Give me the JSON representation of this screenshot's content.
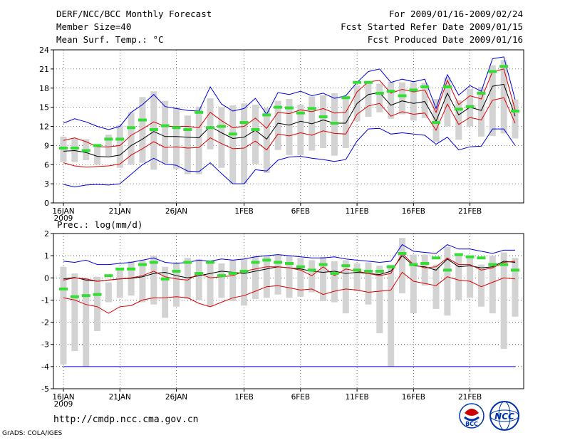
{
  "header": {
    "title": "DERF/NCC/BCC Monthly Forecast",
    "member_size": "Member Size=40",
    "variable": "Mean Surf. Temp.: °C",
    "period": "For 2009/01/16-2009/02/24",
    "fcst_started": "Fcst Started Refer Date 2009/01/15",
    "fcst_produced": "Fcst Produced Date 2009/01/16"
  },
  "footer": {
    "url": "http://cmdp.ncc.cma.gov.cn",
    "grads": "GrADS: COLA/IGES",
    "logo1_text": "BCC",
    "logo2_text": "NCC"
  },
  "colors": {
    "box": "#d3d3d3",
    "mean": "#000000",
    "inner": "#dd0000",
    "outer": "#0000dd",
    "obs": "#33dd33",
    "grid": "#000000"
  },
  "chart_data": [
    {
      "type": "line",
      "title": "Mean Surf. Temp.: °C",
      "days": 40,
      "ylim": [
        0,
        24
      ],
      "yticks": [
        "0",
        "3",
        "6",
        "9",
        "12",
        "15",
        "18",
        "21",
        "24"
      ],
      "xticks": [
        {
          "day": 0,
          "label": "16JAN",
          "sub": "2009"
        },
        {
          "day": 5,
          "label": "21JAN"
        },
        {
          "day": 10,
          "label": "26JAN"
        },
        {
          "day": 16,
          "label": "1FEB"
        },
        {
          "day": 21,
          "label": "6FEB"
        },
        {
          "day": 26,
          "label": "11FEB"
        },
        {
          "day": 31,
          "label": "16FEB"
        },
        {
          "day": 36,
          "label": "21FEB"
        }
      ],
      "series": [
        {
          "name": "ensemble-mean",
          "values": [
            8.1,
            8.2,
            7.9,
            7.3,
            7.2,
            7.5,
            9.0,
            10.0,
            11.2,
            10.4,
            10.4,
            10.3,
            10.2,
            12.0,
            11.0,
            10.1,
            10.3,
            11.4,
            10.0,
            12.5,
            12.2,
            12.8,
            12.4,
            13.0,
            12.5,
            12.5,
            15.6,
            17.0,
            17.3,
            15.3,
            16.0,
            15.6,
            15.9,
            12.8,
            17.2,
            13.8,
            15.0,
            14.5,
            18.3,
            18.6,
            13.6
          ]
        },
        {
          "name": "inner-upper",
          "values": [
            9.8,
            10.2,
            9.6,
            8.8,
            8.8,
            9.0,
            10.6,
            11.6,
            12.7,
            12.0,
            12.0,
            12.0,
            11.8,
            14.2,
            12.9,
            11.8,
            12.0,
            13.3,
            11.7,
            14.2,
            14.0,
            14.6,
            14.3,
            14.8,
            14.1,
            14.2,
            17.4,
            19.0,
            19.2,
            17.2,
            17.8,
            17.4,
            17.7,
            14.2,
            19.2,
            15.4,
            16.8,
            16.3,
            20.6,
            21.0,
            14.6
          ]
        },
        {
          "name": "inner-lower",
          "values": [
            6.3,
            5.8,
            5.6,
            5.7,
            5.8,
            6.1,
            7.5,
            8.5,
            9.6,
            8.7,
            8.8,
            8.6,
            8.7,
            10.2,
            9.3,
            8.5,
            8.6,
            9.7,
            8.3,
            10.8,
            10.5,
            11.0,
            10.6,
            11.3,
            10.9,
            10.8,
            13.9,
            15.2,
            15.6,
            13.6,
            14.3,
            13.9,
            14.1,
            11.4,
            15.5,
            12.3,
            13.4,
            13.0,
            16.1,
            16.5,
            12.5
          ]
        },
        {
          "name": "outer-upper",
          "values": [
            12.5,
            13.2,
            12.7,
            12.0,
            11.5,
            12.0,
            14.2,
            15.4,
            17.0,
            15.1,
            14.8,
            14.5,
            14.4,
            18.2,
            15.5,
            14.4,
            14.8,
            16.4,
            13.9,
            17.3,
            17.0,
            17.5,
            16.8,
            17.2,
            16.4,
            16.8,
            18.9,
            20.6,
            21.0,
            18.9,
            19.4,
            19.0,
            19.4,
            14.8,
            20.1,
            16.9,
            18.4,
            17.5,
            22.6,
            22.9,
            16.2
          ]
        },
        {
          "name": "outer-lower",
          "values": [
            2.9,
            2.5,
            2.8,
            2.9,
            2.8,
            3.0,
            4.5,
            6.0,
            7.0,
            6.1,
            5.9,
            5.0,
            4.9,
            6.3,
            4.6,
            3.0,
            3.0,
            5.2,
            5.0,
            6.7,
            7.2,
            7.3,
            7.0,
            6.8,
            6.5,
            6.8,
            9.7,
            11.6,
            11.7,
            10.8,
            11.0,
            10.8,
            10.6,
            9.2,
            10.3,
            8.3,
            8.8,
            8.9,
            11.6,
            11.6,
            9.0
          ]
        }
      ],
      "boxes": [
        [
          6.4,
          10.4
        ],
        [
          6.4,
          10.1
        ],
        [
          6.7,
          10.0
        ],
        [
          6.0,
          8.9
        ],
        [
          7.2,
          10.7
        ],
        [
          5.5,
          12.2
        ],
        [
          6.0,
          14.2
        ],
        [
          6.3,
          16.6
        ],
        [
          5.2,
          17.5
        ],
        [
          6.2,
          16.0
        ],
        [
          5.3,
          15.0
        ],
        [
          4.5,
          13.7
        ],
        [
          4.5,
          15.1
        ],
        [
          8.4,
          16.4
        ],
        [
          5.5,
          15.0
        ],
        [
          3.0,
          15.3
        ],
        [
          3.0,
          15.6
        ],
        [
          6.1,
          15.4
        ],
        [
          4.7,
          14.9
        ],
        [
          8.3,
          16.0
        ],
        [
          7.5,
          16.3
        ],
        [
          7.5,
          15.4
        ],
        [
          8.2,
          16.7
        ],
        [
          8.6,
          16.9
        ],
        [
          7.4,
          17.2
        ],
        [
          8.6,
          16.5
        ],
        [
          12.8,
          18.4
        ],
        [
          13.5,
          19.0
        ],
        [
          14.2,
          18.7
        ],
        [
          13.2,
          19.0
        ],
        [
          13.9,
          18.9
        ],
        [
          12.9,
          18.9
        ],
        [
          13.3,
          18.8
        ],
        [
          9.6,
          16.3
        ],
        [
          12.0,
          19.7
        ],
        [
          9.9,
          16.1
        ],
        [
          12.0,
          17.9
        ],
        [
          10.4,
          18.2
        ],
        [
          10.5,
          21.6
        ],
        [
          10.9,
          22.4
        ],
        [
          10.1,
          16.2
        ]
      ],
      "obs": [
        8.6,
        8.6,
        8.2,
        9.0,
        10.0,
        10.0,
        11.8,
        13.0,
        11.5,
        12.1,
        11.8,
        11.5,
        14.2,
        11.8,
        12.0,
        10.8,
        12.6,
        11.5,
        13.8,
        15.0,
        14.9,
        14.1,
        14.8,
        13.5,
        12.5,
        16.5,
        18.9,
        18.9,
        17.2,
        17.5,
        16.8,
        17.7,
        18.2,
        12.6,
        18.2,
        14.7,
        15.1,
        17.2,
        20.6,
        21.4,
        14.4
      ]
    },
    {
      "type": "line",
      "title": "Prec.: log(mm/d)",
      "days": 40,
      "ylim": [
        -5,
        2
      ],
      "yticks": [
        "-5",
        "-4",
        "-3",
        "-2",
        "-1",
        "0",
        "1",
        "2"
      ],
      "xticks": [
        {
          "day": 0,
          "label": "16JAN",
          "sub": "2009"
        },
        {
          "day": 5,
          "label": "21JAN"
        },
        {
          "day": 10,
          "label": "26JAN"
        },
        {
          "day": 16,
          "label": "1FEB"
        },
        {
          "day": 21,
          "label": "6FEB"
        },
        {
          "day": 26,
          "label": "11FEB"
        },
        {
          "day": 31,
          "label": "16FEB"
        },
        {
          "day": 36,
          "label": "21FEB"
        }
      ],
      "hline": -4,
      "series": [
        {
          "name": "ensemble-mean",
          "values": [
            -0.05,
            0.02,
            -0.1,
            -0.15,
            -0.1,
            -0.05,
            -0.02,
            0.05,
            0.2,
            0.25,
            0.1,
            0.0,
            0.1,
            0.2,
            0.3,
            0.25,
            0.2,
            0.3,
            0.4,
            0.5,
            0.45,
            0.4,
            0.3,
            0.25,
            0.3,
            0.2,
            0.25,
            0.2,
            0.15,
            0.3,
            1.0,
            0.55,
            0.5,
            0.35,
            0.85,
            0.5,
            0.55,
            0.45,
            0.5,
            0.75,
            0.7
          ]
        },
        {
          "name": "mean-b",
          "values": [
            -0.1,
            0.0,
            -0.05,
            -0.15,
            -0.1,
            -0.05,
            0.0,
            0.1,
            0.3,
            0.05,
            -0.05,
            -0.1,
            0.2,
            0.0,
            0.05,
            0.1,
            0.3,
            0.4,
            0.5,
            0.5,
            0.45,
            0.35,
            0.1,
            0.5,
            0.1,
            0.4,
            0.3,
            0.2,
            0.1,
            0.2,
            1.1,
            0.6,
            0.45,
            0.5,
            0.9,
            0.6,
            0.6,
            0.35,
            0.45,
            0.7,
            0.75
          ]
        },
        {
          "name": "inner-lower",
          "values": [
            -0.9,
            -1.0,
            -1.2,
            -1.3,
            -1.6,
            -1.3,
            -1.25,
            -1.0,
            -0.9,
            -0.9,
            -0.85,
            -0.9,
            -1.15,
            -1.3,
            -1.1,
            -0.9,
            -0.8,
            -0.6,
            -0.4,
            -0.35,
            -0.45,
            -0.55,
            -0.5,
            -0.75,
            -0.6,
            -0.5,
            -0.55,
            -0.65,
            -0.6,
            -0.55,
            0.25,
            -0.15,
            -0.25,
            -0.35,
            0.05,
            -0.1,
            -0.15,
            -0.4,
            -0.2,
            0.0,
            -0.05
          ]
        },
        {
          "name": "outer-upper",
          "values": [
            0.75,
            0.7,
            0.8,
            0.6,
            0.6,
            0.65,
            0.7,
            0.8,
            0.9,
            0.7,
            0.65,
            0.7,
            0.8,
            0.75,
            0.85,
            0.8,
            0.85,
            0.95,
            1.0,
            1.05,
            1.0,
            0.95,
            0.9,
            0.9,
            0.95,
            0.85,
            0.8,
            0.75,
            0.7,
            0.75,
            1.5,
            1.2,
            1.15,
            1.1,
            1.5,
            1.3,
            1.3,
            1.2,
            1.1,
            1.25,
            1.25
          ]
        }
      ],
      "boxes": [
        [
          -3.9,
          0.5
        ],
        [
          -3.3,
          0.2
        ],
        [
          -4.0,
          0.0
        ],
        [
          -2.4,
          0.05
        ],
        [
          -1.1,
          -0.2
        ],
        [
          -0.9,
          0.45
        ],
        [
          -0.8,
          0.75
        ],
        [
          -1.1,
          0.8
        ],
        [
          -1.2,
          1.0
        ],
        [
          -1.8,
          0.5
        ],
        [
          -1.3,
          0.7
        ],
        [
          -0.95,
          0.9
        ],
        [
          -1.0,
          0.85
        ],
        [
          -1.3,
          0.8
        ],
        [
          -0.9,
          0.65
        ],
        [
          -1.05,
          0.8
        ],
        [
          -1.25,
          0.85
        ],
        [
          -0.95,
          1.0
        ],
        [
          -0.9,
          1.0
        ],
        [
          -0.75,
          1.05
        ],
        [
          -0.9,
          1.0
        ],
        [
          -0.85,
          0.9
        ],
        [
          -0.65,
          0.8
        ],
        [
          -1.05,
          0.95
        ],
        [
          -1.1,
          0.75
        ],
        [
          -1.6,
          0.8
        ],
        [
          -0.6,
          0.65
        ],
        [
          -1.2,
          0.7
        ],
        [
          -2.5,
          0.55
        ],
        [
          -4.0,
          0.6
        ],
        [
          -0.7,
          1.8
        ],
        [
          -1.6,
          1.05
        ],
        [
          -0.35,
          1.05
        ],
        [
          -1.4,
          0.6
        ],
        [
          -1.7,
          1.4
        ],
        [
          -1.0,
          1.0
        ],
        [
          -0.9,
          1.0
        ],
        [
          -1.3,
          0.6
        ],
        [
          -1.6,
          1.0
        ],
        [
          -3.2,
          1.15
        ],
        [
          -1.75,
          0.9
        ]
      ],
      "obs": [
        -0.5,
        -0.85,
        -0.8,
        -0.75,
        0.1,
        0.4,
        0.4,
        0.6,
        0.7,
        -0.05,
        0.3,
        0.7,
        0.2,
        0.7,
        0.1,
        0.2,
        0.3,
        0.7,
        0.8,
        0.7,
        0.65,
        0.5,
        0.35,
        0.6,
        0.2,
        0.55,
        0.35,
        0.3,
        0.3,
        0.5,
        1.1,
        0.6,
        0.65,
        0.9,
        0.35,
        1.05,
        0.95,
        0.9,
        0.6,
        0.6,
        0.35
      ]
    }
  ]
}
